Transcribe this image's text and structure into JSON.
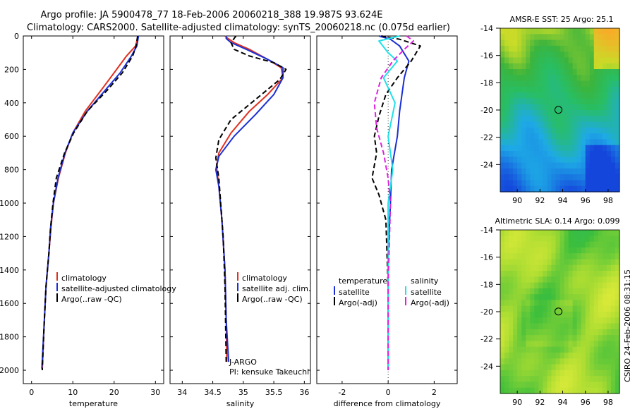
{
  "header": {
    "title_line1": "Argo profile: JA 5900478_77 18-Feb-2006 20060218_388 19.987S 93.624E",
    "title_line2": "Climatology: CARS2000. Satellite-adjusted climatology: synTS_20060218.nc (0.075d earlier)"
  },
  "colors": {
    "climatology": "#e03020",
    "satellite": "#1a2fd6",
    "argo": "#000000",
    "salinity_satellite": "#20e0e8",
    "salinity_argo": "#e020e0"
  },
  "chart_data": [
    {
      "type": "line",
      "name": "temperature-profile",
      "xlabel": "temperature",
      "xlim": [
        -2,
        32
      ],
      "ylim": [
        2080,
        0
      ],
      "xticks": [
        0,
        10,
        20,
        30
      ],
      "yticks": [
        0,
        200,
        400,
        600,
        800,
        1000,
        1200,
        1400,
        1600,
        1800,
        2000
      ],
      "series": [
        {
          "name": "climatology",
          "style": "solid",
          "color": "#e03020",
          "x": [
            25.8,
            25.2,
            23,
            20,
            17,
            13,
            10,
            8.2,
            6.5,
            5.3,
            4.7,
            4.2,
            3.5,
            3.0,
            2.6
          ],
          "y": [
            0,
            60,
            120,
            220,
            320,
            450,
            580,
            700,
            850,
            1000,
            1150,
            1300,
            1500,
            1750,
            2000
          ]
        },
        {
          "name": "satellite-adjusted climatology",
          "style": "solid",
          "color": "#1a2fd6",
          "x": [
            25.9,
            25.5,
            24.2,
            21.5,
            18,
            13.5,
            10,
            8.1,
            6.4,
            5.3,
            4.6,
            4.2,
            3.5,
            3.0,
            2.5
          ],
          "y": [
            0,
            60,
            120,
            220,
            320,
            450,
            580,
            700,
            850,
            1000,
            1150,
            1300,
            1500,
            1750,
            1990
          ]
        },
        {
          "name": "Argo(..raw -QC)",
          "style": "dash",
          "color": "#000000",
          "x": [
            25.7,
            25.3,
            24.5,
            22,
            18.5,
            13.5,
            10.2,
            8,
            6.0,
            5.2,
            4.6,
            4.2,
            3.5,
            3.0,
            2.6
          ],
          "y": [
            0,
            60,
            120,
            220,
            320,
            450,
            580,
            700,
            850,
            1000,
            1150,
            1300,
            1500,
            1750,
            2000
          ]
        }
      ],
      "legend": {
        "position": "lower-right",
        "entries": [
          "climatology",
          "satellite-adjusted climatology",
          "Argo(..raw -QC)"
        ]
      }
    },
    {
      "type": "line",
      "name": "salinity-profile",
      "xlabel": "salinity",
      "xlim": [
        33.8,
        36.1
      ],
      "ylim": [
        2080,
        0
      ],
      "xticks": [
        34,
        34.5,
        35,
        35.5,
        36
      ],
      "series": [
        {
          "name": "climatology",
          "style": "solid",
          "color": "#e03020",
          "x": [
            34.7,
            34.75,
            34.85,
            35.1,
            35.4,
            35.62,
            35.65,
            35.4,
            35.1,
            34.8,
            34.6,
            34.56,
            34.6,
            34.65,
            34.7,
            34.72,
            34.73
          ],
          "y": [
            0,
            15,
            40,
            80,
            140,
            190,
            250,
            350,
            450,
            580,
            700,
            780,
            900,
            1100,
            1400,
            1700,
            1950
          ]
        },
        {
          "name": "satellite adj. clim.",
          "style": "solid",
          "color": "#1a2fd6",
          "x": [
            34.72,
            34.72,
            34.8,
            35.05,
            35.4,
            35.65,
            35.65,
            35.5,
            35.2,
            34.85,
            34.6,
            34.55,
            34.6,
            34.65,
            34.7,
            34.72,
            34.76
          ],
          "y": [
            0,
            15,
            40,
            80,
            140,
            190,
            250,
            350,
            470,
            600,
            720,
            800,
            900,
            1100,
            1400,
            1700,
            1950
          ]
        },
        {
          "name": "Argo(..raw -QC)",
          "style": "dash",
          "color": "#000000",
          "x": [
            34.88,
            34.8,
            34.85,
            35.1,
            35.5,
            35.7,
            35.6,
            35.2,
            34.8,
            34.6,
            34.55,
            34.6,
            34.63,
            34.67,
            34.7,
            34.72
          ],
          "y": [
            0,
            40,
            80,
            120,
            160,
            200,
            260,
            380,
            500,
            620,
            730,
            850,
            1000,
            1200,
            1500,
            1950
          ]
        }
      ],
      "legend": {
        "position": "lower-right",
        "entries": [
          "climatology",
          "satellite adj. clim.",
          "Argo(..raw -QC)"
        ]
      },
      "annotations": [
        "J-ARGO",
        "PI: kensuke Takeuchi"
      ]
    },
    {
      "type": "line",
      "name": "difference-profile",
      "xlabel": "difference from climatology",
      "xlim": [
        -3.1,
        3.0
      ],
      "ylim": [
        2080,
        0
      ],
      "xticks": [
        -2,
        0,
        2
      ],
      "series": [
        {
          "name": "temperature satellite",
          "style": "solid",
          "color": "#1a2fd6",
          "x": [
            -0.4,
            0.1,
            0.5,
            0.9,
            0.7,
            0.6,
            0.5,
            0.4,
            0.15,
            0.1,
            0.0,
            0.0,
            0.0
          ],
          "y": [
            0,
            20,
            60,
            150,
            250,
            350,
            450,
            600,
            800,
            1000,
            1300,
            1700,
            2000
          ]
        },
        {
          "name": "temperature Argo(-adj)",
          "style": "dash",
          "color": "#000000",
          "x": [
            -0.3,
            0.5,
            1.4,
            1.0,
            0.4,
            -0.1,
            -0.4,
            -0.6,
            -0.5,
            -0.7,
            -0.4,
            -0.1,
            0.0,
            0.0
          ],
          "y": [
            0,
            20,
            60,
            150,
            250,
            350,
            480,
            600,
            700,
            850,
            950,
            1100,
            1500,
            2000
          ]
        },
        {
          "name": "salinity satellite",
          "style": "solid",
          "color": "#20e0e8",
          "x": [
            0.5,
            -0.4,
            0.0,
            0.4,
            -0.2,
            0.3,
            0.0,
            0.2,
            0.0,
            0.0,
            0.0
          ],
          "y": [
            0,
            30,
            100,
            150,
            250,
            400,
            600,
            800,
            1000,
            1500,
            2000
          ]
        },
        {
          "name": "salinity Argo(-adj)",
          "style": "dash",
          "color": "#e020e0",
          "x": [
            0.8,
            1.1,
            0.7,
            0.2,
            -0.3,
            -0.6,
            -0.5,
            -0.2,
            0.0,
            0.1,
            0.0,
            0.0
          ],
          "y": [
            0,
            30,
            80,
            150,
            250,
            400,
            550,
            700,
            850,
            1000,
            1500,
            2000
          ]
        }
      ],
      "legend": {
        "position": "lower-right",
        "temperature_heading": "temperature",
        "salinity_heading": "salinity",
        "temperature_entries": [
          "satellite",
          "Argo(-adj)"
        ],
        "salinity_entries": [
          "satellite",
          "Argo(-adj)"
        ]
      }
    },
    {
      "type": "heatmap",
      "name": "sst-map",
      "title": "AMSR-E SST: 25 Argo: 25.1",
      "xlim": [
        88.5,
        99
      ],
      "ylim": [
        -26,
        -14
      ],
      "xticks": [
        90,
        92,
        94,
        96,
        98
      ],
      "yticks": [
        -14,
        -16,
        -18,
        -20,
        -22,
        -24
      ],
      "marker": {
        "lon": 93.624,
        "lat": -19.987
      }
    },
    {
      "type": "heatmap",
      "name": "sla-map",
      "title": "Altimetric SLA: 0.14 Argo: 0.099",
      "xlim": [
        88.5,
        99
      ],
      "ylim": [
        -26,
        -14
      ],
      "xticks": [
        90,
        92,
        94,
        96,
        98
      ],
      "yticks": [
        -14,
        -16,
        -18,
        -20,
        -22,
        -24
      ],
      "marker": {
        "lon": 93.624,
        "lat": -19.987
      }
    }
  ],
  "side_label": "CSIRO 24-Feb-2006 08:31:15"
}
